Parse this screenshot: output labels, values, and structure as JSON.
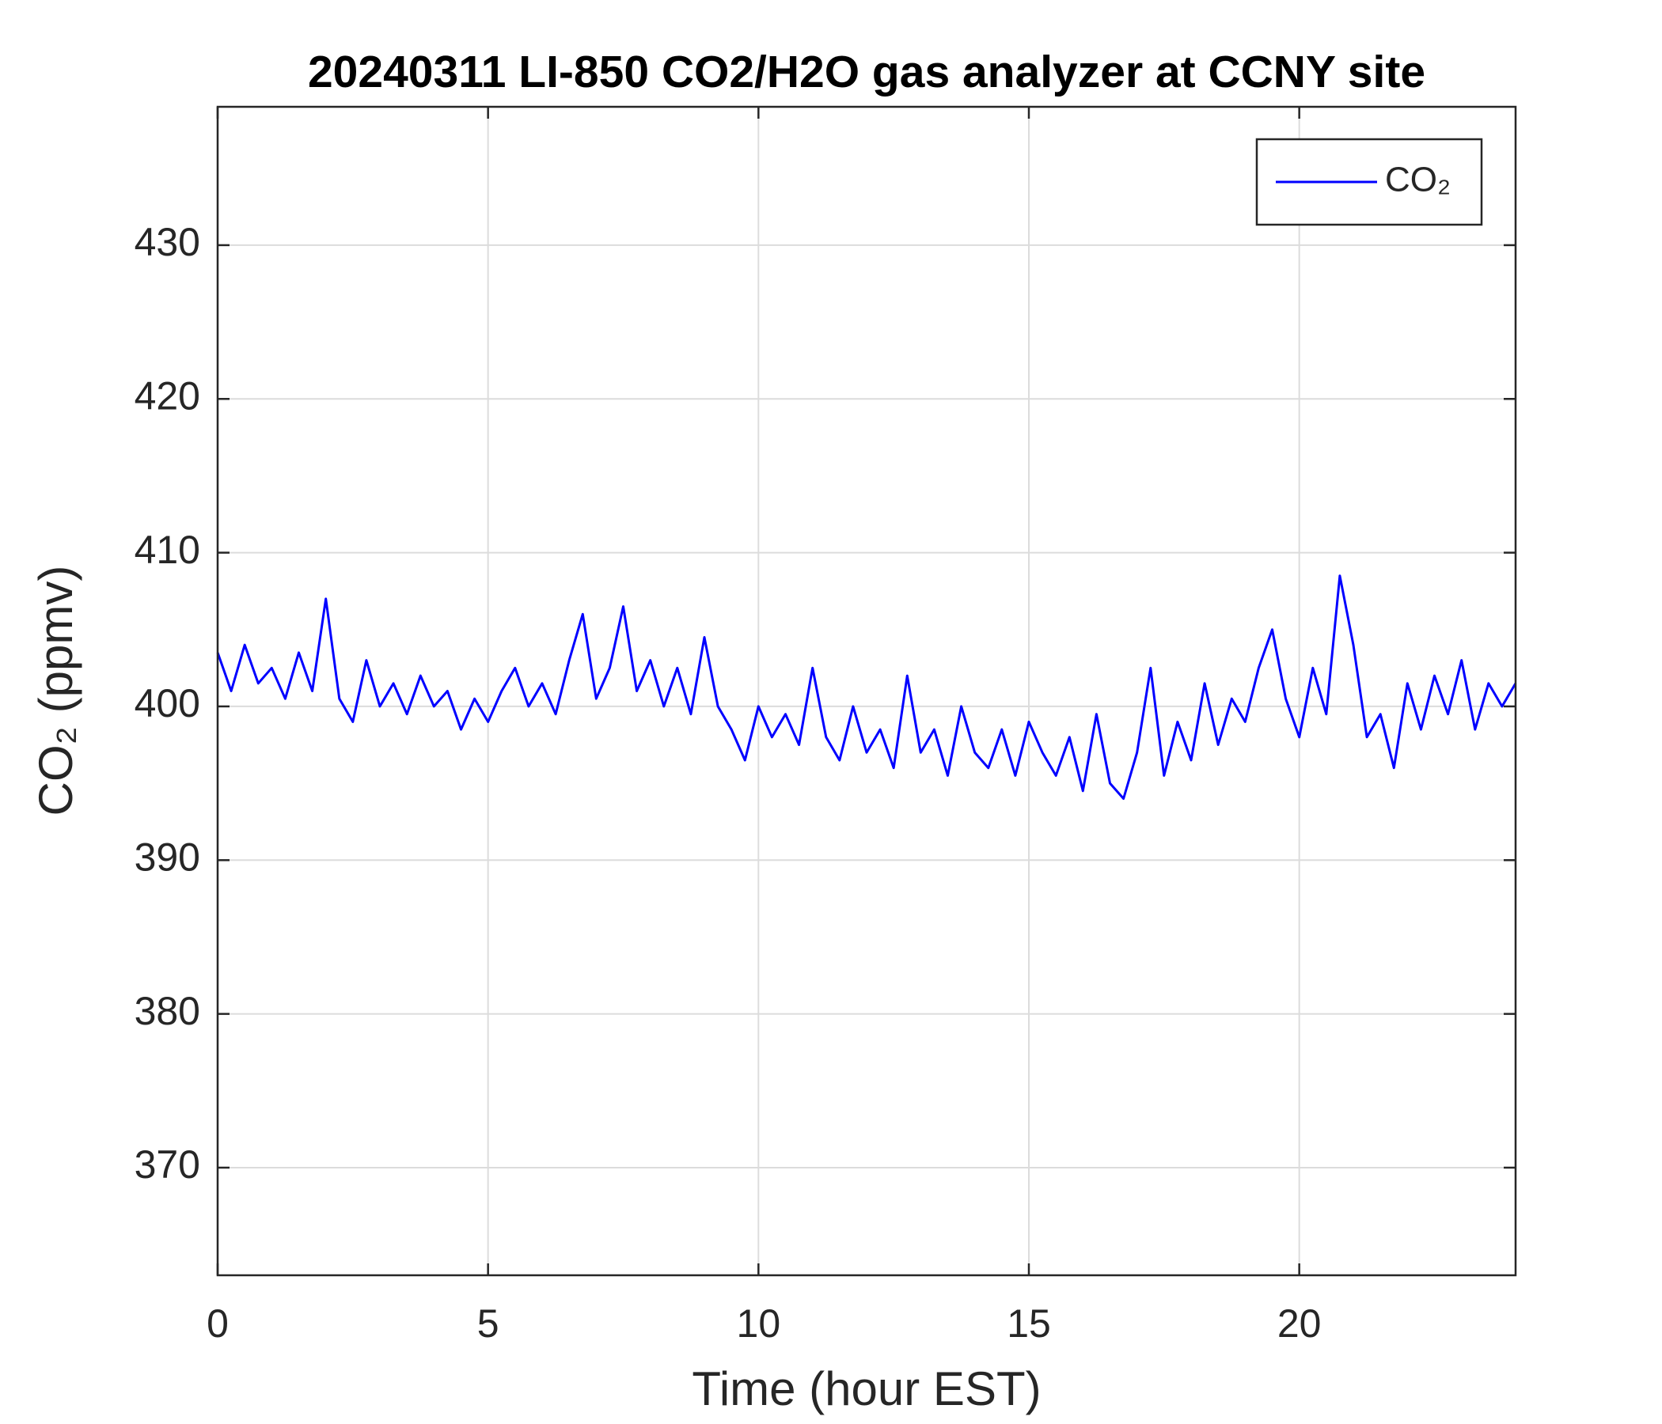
{
  "chart_data": {
    "type": "line",
    "title": "20240311 LI-850 CO2/H2O gas analyzer at CCNY site",
    "xlabel": "Time (hour EST)",
    "ylabel": "CO₂ (ppmv)",
    "x": [
      0,
      0.25,
      0.5,
      0.75,
      1,
      1.25,
      1.5,
      1.75,
      2,
      2.25,
      2.5,
      2.75,
      3,
      3.25,
      3.5,
      3.75,
      4,
      4.25,
      4.5,
      4.75,
      5,
      5.25,
      5.5,
      5.75,
      6,
      6.25,
      6.5,
      6.75,
      7,
      7.25,
      7.5,
      7.75,
      8,
      8.25,
      8.5,
      8.75,
      9,
      9.25,
      9.5,
      9.75,
      10,
      10.25,
      10.5,
      10.75,
      11,
      11.25,
      11.5,
      11.75,
      12,
      12.25,
      12.5,
      12.75,
      13,
      13.25,
      13.5,
      13.75,
      14,
      14.25,
      14.5,
      14.75,
      15,
      15.25,
      15.5,
      15.75,
      16,
      16.25,
      16.5,
      16.75,
      17,
      17.25,
      17.5,
      17.75,
      18,
      18.25,
      18.5,
      18.75,
      19,
      19.25,
      19.5,
      19.75,
      20,
      20.25,
      20.5,
      20.75,
      21,
      21.25,
      21.5,
      21.75,
      22,
      22.25,
      22.5,
      22.75,
      23,
      23.25,
      23.5,
      23.75,
      24
    ],
    "series": [
      {
        "name": "CO₂",
        "color": "#0000ff",
        "values": [
          403.5,
          401,
          404,
          401.5,
          402.5,
          400.5,
          403.5,
          401,
          407,
          400.5,
          399,
          403,
          400,
          401.5,
          399.5,
          402,
          400,
          401,
          398.5,
          400.5,
          399,
          401,
          402.5,
          400,
          401.5,
          399.5,
          403,
          406,
          400.5,
          402.5,
          406.5,
          401,
          403,
          400,
          402.5,
          399.5,
          404.5,
          400,
          398.5,
          396.5,
          400,
          398,
          399.5,
          397.5,
          402.5,
          398,
          396.5,
          400,
          397,
          398.5,
          396,
          402,
          397,
          398.5,
          395.5,
          400,
          397,
          396,
          398.5,
          395.5,
          399,
          397,
          395.5,
          398,
          394.5,
          399.5,
          395,
          394,
          397,
          402.5,
          395.5,
          399,
          396.5,
          401.5,
          397.5,
          400.5,
          399,
          402.5,
          405,
          400.5,
          398,
          402.5,
          399.5,
          408.5,
          404,
          398,
          399.5,
          396,
          401.5,
          398.5,
          402,
          399.5,
          403,
          398.5,
          401.5,
          400,
          401.5
        ]
      }
    ],
    "xlim": [
      0,
      24
    ],
    "ylim": [
      363,
      439
    ],
    "xticks": [
      0,
      5,
      10,
      15,
      20
    ],
    "yticks": [
      370,
      380,
      390,
      400,
      410,
      420,
      430
    ],
    "grid": true,
    "legend": "top-right"
  }
}
